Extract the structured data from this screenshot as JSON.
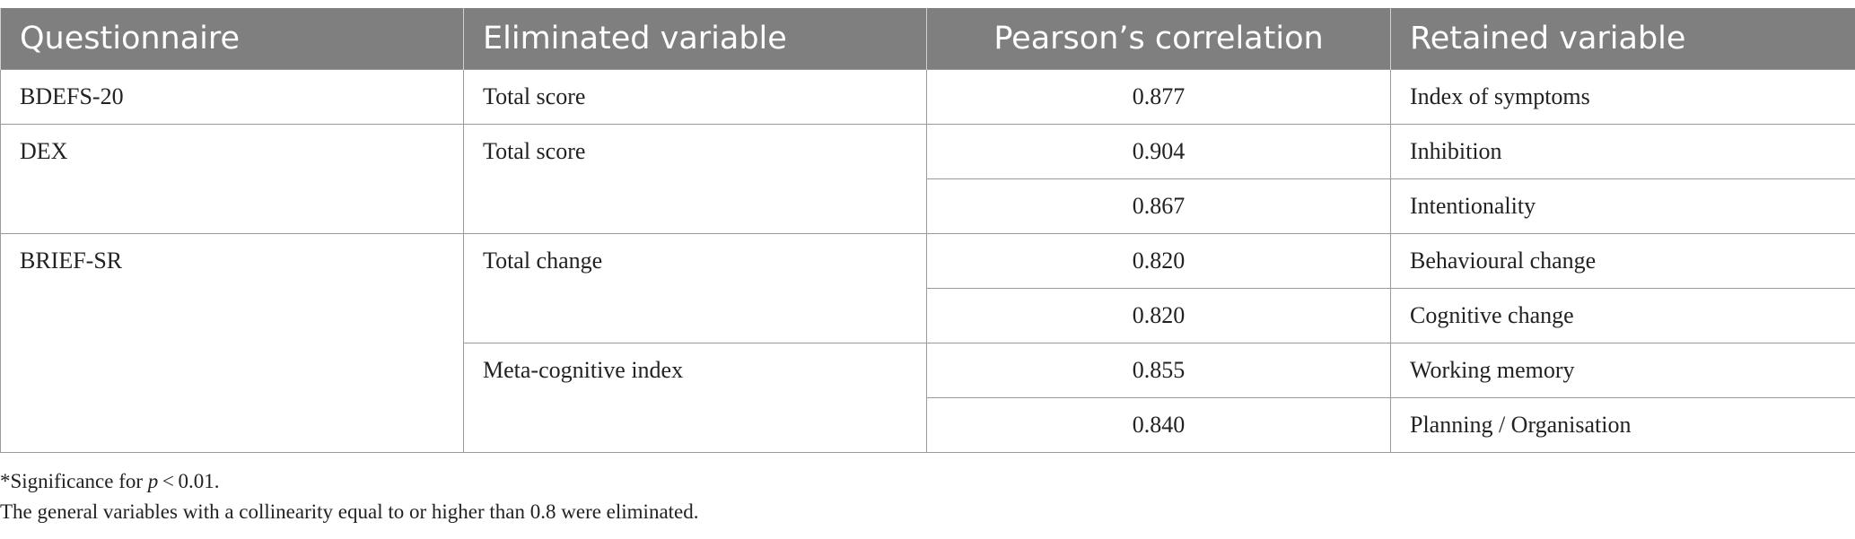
{
  "table": {
    "headers": [
      "Questionnaire",
      "Eliminated variable",
      "Pearson’s correlation",
      "Retained variable"
    ],
    "groups": [
      {
        "questionnaire": "BDEFS-20",
        "eliminated": [
          {
            "label": "Total score",
            "rows": [
              {
                "correlation": "0.877",
                "retained": "Index of symptoms"
              }
            ]
          }
        ]
      },
      {
        "questionnaire": "DEX",
        "eliminated": [
          {
            "label": "Total score",
            "rows": [
              {
                "correlation": "0.904",
                "retained": "Inhibition"
              },
              {
                "correlation": "0.867",
                "retained": "Intentionality"
              }
            ]
          }
        ]
      },
      {
        "questionnaire": "BRIEF-SR",
        "eliminated": [
          {
            "label": "Total change",
            "rows": [
              {
                "correlation": "0.820",
                "retained": "Behavioural change"
              },
              {
                "correlation": "0.820",
                "retained": "Cognitive change"
              }
            ]
          },
          {
            "label": "Meta-cognitive index",
            "rows": [
              {
                "correlation": "0.855",
                "retained": "Working memory"
              },
              {
                "correlation": "0.840",
                "retained": "Planning / Organisation"
              }
            ]
          }
        ]
      }
    ]
  },
  "notes": {
    "significance_prefix": "*Significance for ",
    "significance_var": "p",
    "significance_suffix": " < 0.01.",
    "collinearity": "The general variables with a collinearity equal to or higher than 0.8 were eliminated."
  }
}
